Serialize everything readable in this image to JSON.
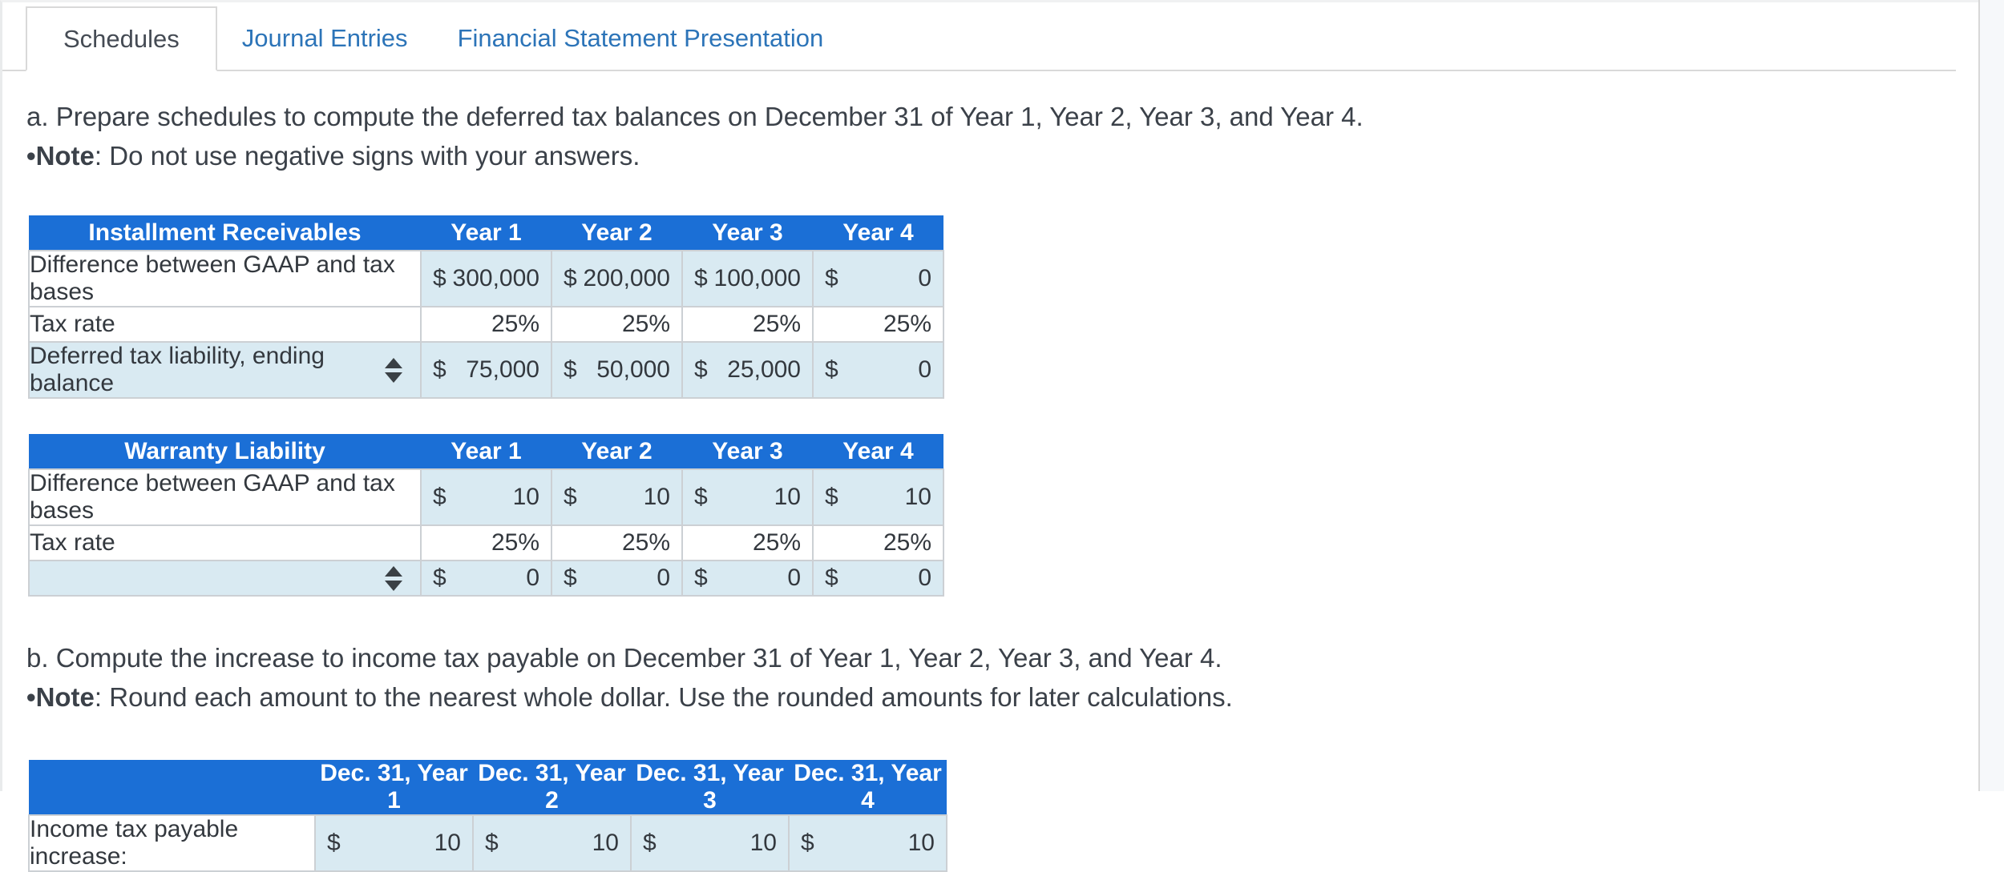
{
  "colors": {
    "header_blue": "#1b6fd6",
    "input_cell_blue": "#d9eaf2",
    "tab_link_blue": "#2c74b8"
  },
  "tabs": {
    "active": "Schedules",
    "links": [
      "Journal Entries",
      "Financial Statement Presentation"
    ]
  },
  "section_a": {
    "instruction": "a. Prepare schedules to compute the deferred tax balances on December 31 of Year 1, Year 2, Year 3, and Year 4.",
    "note_bullet": "•",
    "note_label": "Note",
    "note_text": ": Do not use negative signs with your answers."
  },
  "section_b": {
    "instruction": "b. Compute the increase to income tax payable on December 31 of Year 1, Year 2, Year 3, and Year 4.",
    "note_bullet": "•",
    "note_label": "Note",
    "note_text": ": Round each amount to the nearest whole dollar. Use the rounded amounts for later calculations."
  },
  "installment_table": {
    "title": "Installment Receivables",
    "columns": [
      "Year 1",
      "Year 2",
      "Year 3",
      "Year 4"
    ],
    "diff_row": {
      "label": "Difference between GAAP and tax bases",
      "currency": "$",
      "values": [
        "300,000",
        "200,000",
        "100,000",
        "0"
      ]
    },
    "rate_row": {
      "label": "Tax rate",
      "values": [
        "25%",
        "25%",
        "25%",
        "25%"
      ]
    },
    "total_row": {
      "label": "Deferred tax liability, ending balance",
      "currency": "$",
      "values": [
        "75,000",
        "50,000",
        "25,000",
        "0"
      ]
    }
  },
  "warranty_table": {
    "title": "Warranty Liability",
    "columns": [
      "Year 1",
      "Year 2",
      "Year 3",
      "Year 4"
    ],
    "diff_row": {
      "label": "Difference between GAAP and tax bases",
      "currency": "$",
      "values": [
        "10",
        "10",
        "10",
        "10"
      ]
    },
    "rate_row": {
      "label": "Tax rate",
      "values": [
        "25%",
        "25%",
        "25%",
        "25%"
      ]
    },
    "total_row": {
      "label": "",
      "currency": "$",
      "values": [
        "0",
        "0",
        "0",
        "0"
      ]
    }
  },
  "income_tax_table": {
    "columns": [
      "Dec. 31, Year 1",
      "Dec. 31, Year 2",
      "Dec. 31, Year 3",
      "Dec. 31, Year 4"
    ],
    "row": {
      "label": "Income tax payable increase:",
      "currency": "$",
      "values": [
        "10",
        "10",
        "10",
        "10"
      ]
    }
  }
}
